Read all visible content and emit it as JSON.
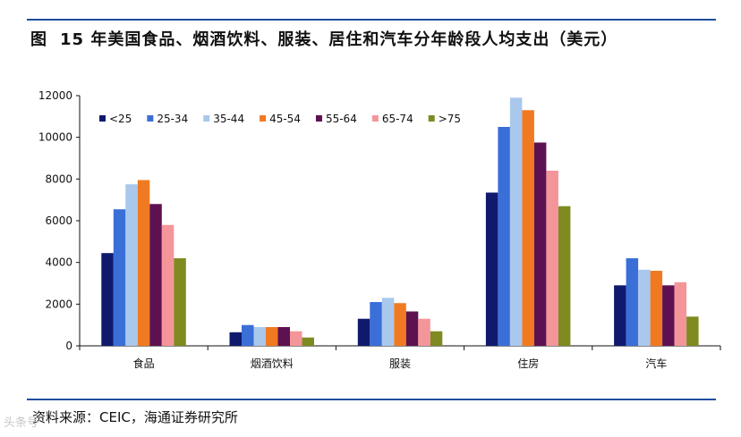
{
  "header": {
    "figure_label": "图",
    "title": "15 年美国食品、烟酒饮料、服装、居住和汽车分年龄段人均支出（美元）"
  },
  "footer": {
    "source": "资料来源：CEIC，海通证券研究所",
    "watermark": "头条号"
  },
  "chart_data": {
    "type": "bar",
    "title": "15 年美国食品、烟酒饮料、服装、居住和汽车分年龄段人均支出（美元）",
    "xlabel": "",
    "ylabel": "",
    "ylim": [
      0,
      12000
    ],
    "yticks": [
      0,
      2000,
      4000,
      6000,
      8000,
      10000,
      12000
    ],
    "grid": false,
    "legend_position": "top-left",
    "categories": [
      "食品",
      "烟酒饮料",
      "服装",
      "住房",
      "汽车"
    ],
    "series": [
      {
        "name": "<25",
        "color": "#0f1a6e",
        "values": [
          4450,
          650,
          1300,
          7350,
          2900
        ]
      },
      {
        "name": "25-34",
        "color": "#3a6fd8",
        "values": [
          6550,
          1000,
          2100,
          10500,
          4200
        ]
      },
      {
        "name": "35-44",
        "color": "#a9c8ec",
        "values": [
          7750,
          900,
          2300,
          11900,
          3650
        ]
      },
      {
        "name": "45-54",
        "color": "#f07a22",
        "values": [
          7950,
          900,
          2050,
          11300,
          3600
        ]
      },
      {
        "name": "55-64",
        "color": "#5e1150",
        "values": [
          6800,
          900,
          1650,
          9750,
          2900
        ]
      },
      {
        "name": "65-74",
        "color": "#f4959a",
        "values": [
          5800,
          700,
          1300,
          8400,
          3050
        ]
      },
      {
        "name": ">75",
        "color": "#7f8a21",
        "values": [
          4200,
          400,
          700,
          6700,
          1400
        ]
      }
    ]
  }
}
